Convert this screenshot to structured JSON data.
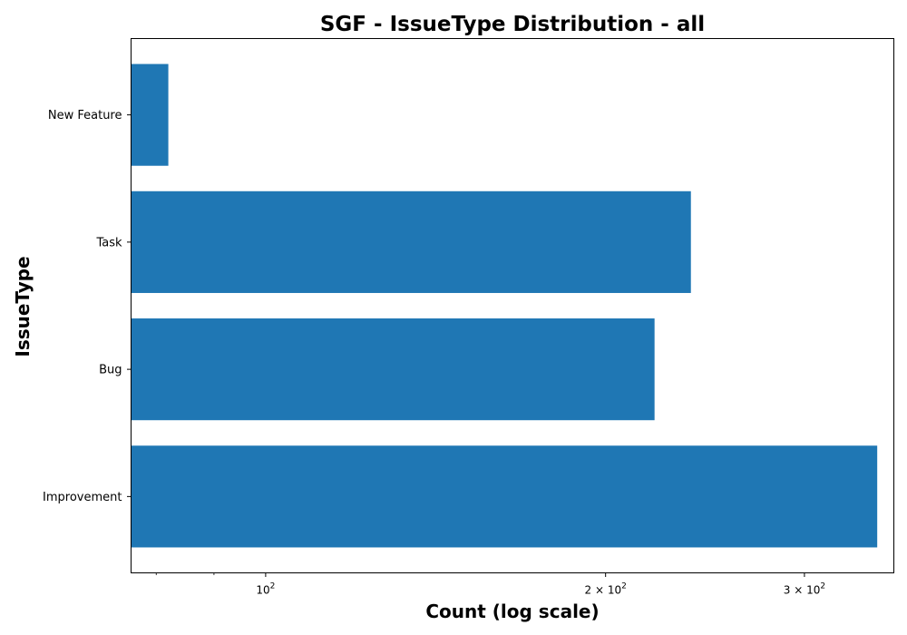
{
  "chart_data": {
    "type": "bar",
    "orientation": "horizontal",
    "title": "SGF - IssueType Distribution - all",
    "xlabel": "Count (log scale)",
    "ylabel": "IssueType",
    "xscale": "log",
    "xlim": [
      76,
      360
    ],
    "categories": [
      "New Feature",
      "Task",
      "Bug",
      "Improvement"
    ],
    "values": [
      82,
      238,
      221,
      348
    ],
    "x_ticks": [
      {
        "value": 100,
        "base": "10",
        "exp": "2"
      },
      {
        "value": 200,
        "base": "2 × 10",
        "exp": "2"
      },
      {
        "value": 300,
        "base": "3 × 10",
        "exp": "2"
      }
    ],
    "bar_color": "#1f77b4",
    "grid": false,
    "legend": "none"
  }
}
